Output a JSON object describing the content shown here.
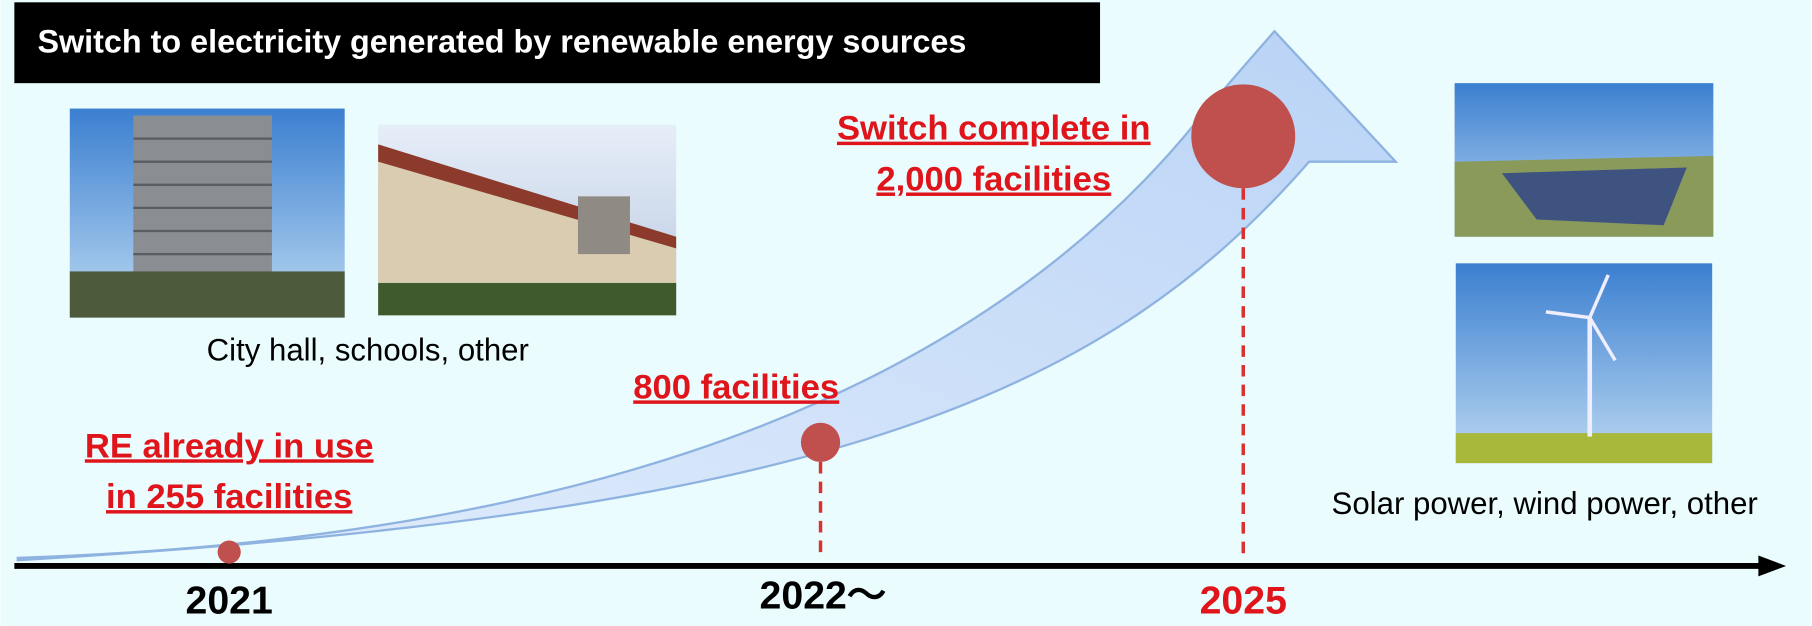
{
  "title": "Switch to electricity generated by renewable energy sources",
  "captions": {
    "facilities": "City hall, schools, other",
    "sources": "Solar power, wind power, other"
  },
  "milestones": [
    {
      "year": "2021",
      "label": [
        "RE already in use",
        "in 255 facilities"
      ]
    },
    {
      "year": "2022～",
      "label": [
        "800 facilities"
      ]
    },
    {
      "year": "2025",
      "label": [
        "Switch complete in",
        "2,000 facilities"
      ]
    }
  ]
}
